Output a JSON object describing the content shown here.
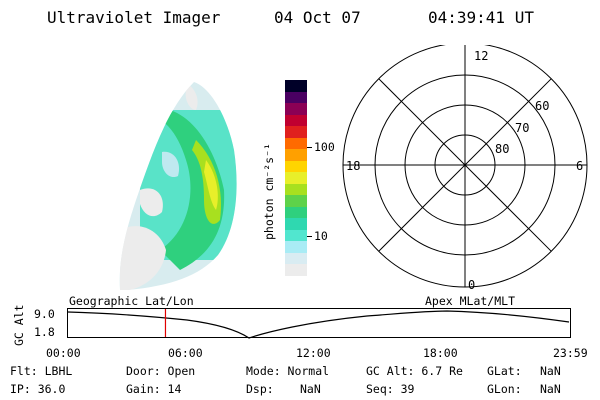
{
  "header": {
    "title": "Ultraviolet Imager",
    "date": "04 Oct 07",
    "time": "04:39:41 UT"
  },
  "colorbar": {
    "unit_label": "photon cm⁻²s⁻¹",
    "tick_100": "100",
    "tick_10": "10",
    "colors": [
      "#ececec",
      "#d9ecf2",
      "#a9ecf5",
      "#51e6cf",
      "#2fd8b0",
      "#2fd07e",
      "#5ed24a",
      "#a8e01f",
      "#e8ef2a",
      "#ffd400",
      "#ffa000",
      "#ff6a00",
      "#e0201e",
      "#c00030",
      "#8b0055",
      "#4a0062",
      "#000028"
    ]
  },
  "polar": {
    "top": "12",
    "left": "18",
    "right": "6",
    "bottom": "0",
    "lat_60": "60",
    "lat_70": "70",
    "lat_80": "80"
  },
  "timeline": {
    "ylabel": "GC Alt",
    "ymax": "9.0",
    "ymin": "1.8",
    "left_title": "Geographic Lat/Lon",
    "right_title": "Apex  MLat/MLT",
    "ticks": [
      "00:00",
      "06:00",
      "12:00",
      "18:00",
      "23:59"
    ],
    "marker_time_hours": 4.66,
    "marker_color": "#e00000"
  },
  "info": {
    "flt": "Flt: LBHL",
    "ip": "IP: 36.0",
    "door": "Door: Open",
    "gain": "Gain: 14",
    "mode": "Mode: Normal",
    "dsp_label": "Dsp:",
    "dsp_value": "NaN",
    "gcalt": "GC Alt: 6.7 Re",
    "seq": "Seq: 39",
    "glat_label": "GLat:",
    "glat_value": "NaN",
    "glon_label": "GLon:",
    "glon_value": "NaN"
  }
}
